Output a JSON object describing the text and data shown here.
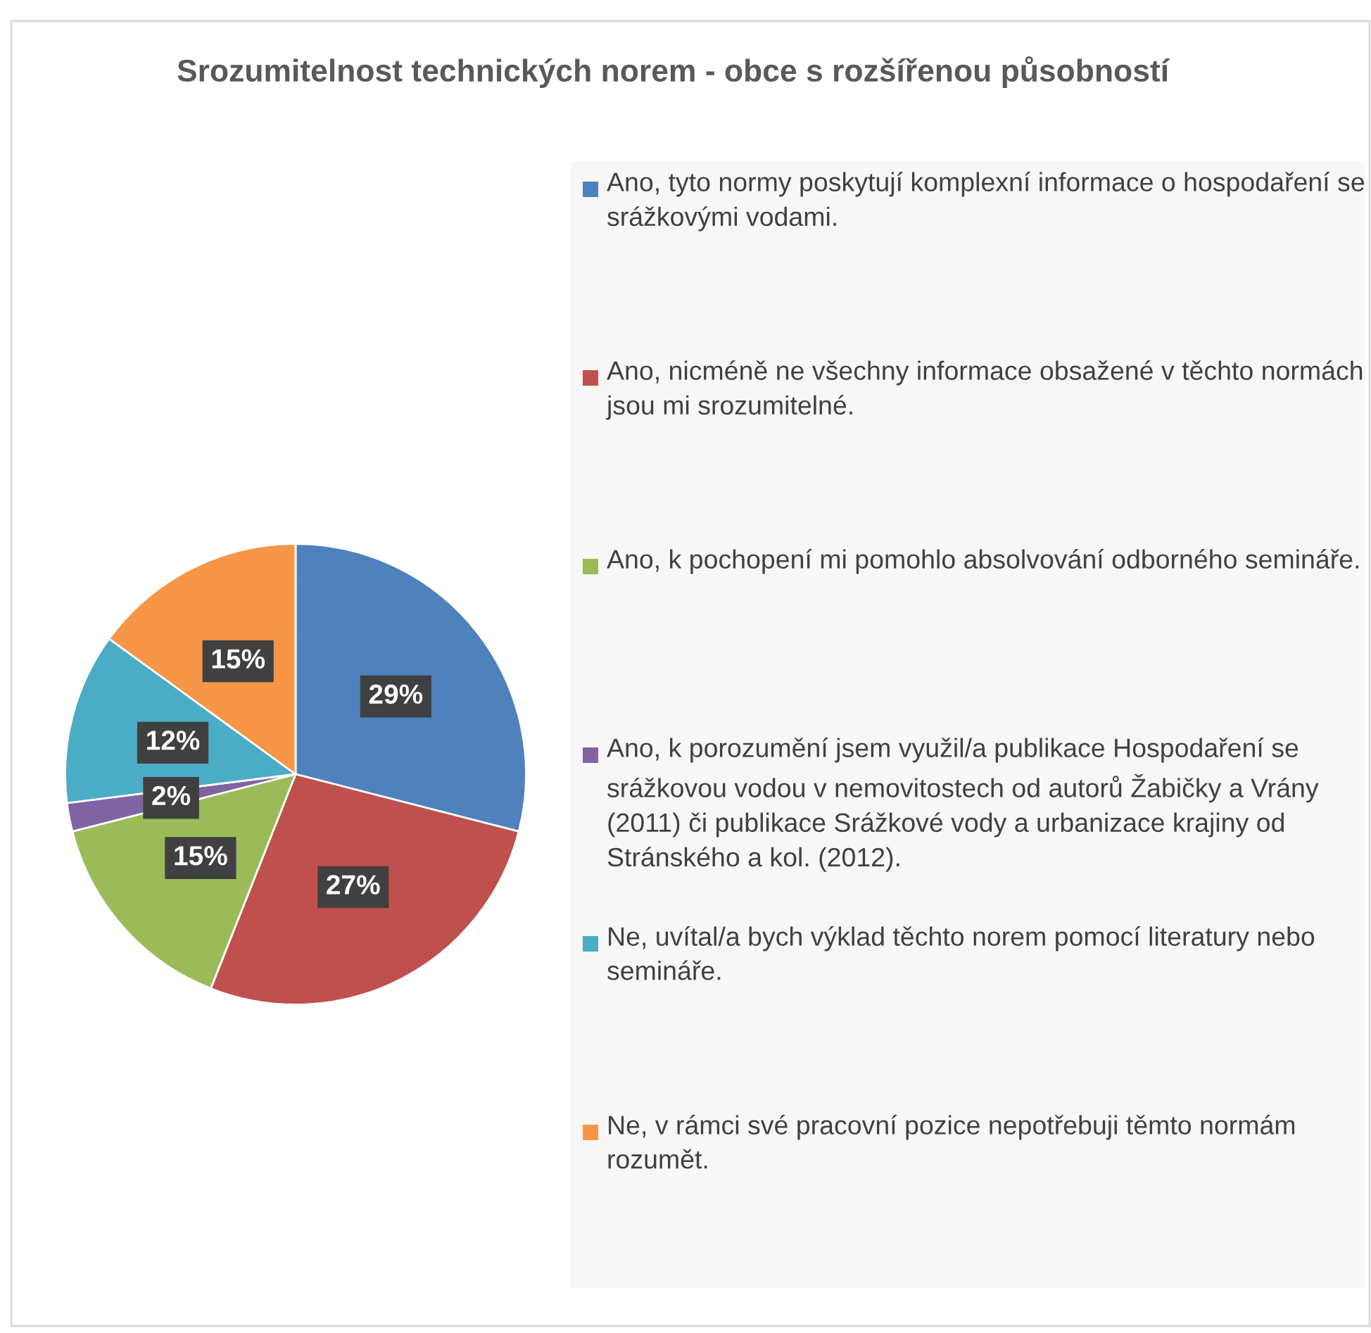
{
  "chart_data": {
    "type": "pie",
    "title": "Srozumitelnost technických norem - obce s rozšířenou působností",
    "categories": [
      "Ano, tyto normy poskytují komplexní informace o hospodaření se srážkovými vodami.",
      "Ano, nicméně ne všechny informace obsažené v těchto normách jsou mi srozumitelné.",
      "Ano, k pochopení mi pomohlo absolvování odborného semináře.",
      "Ano, k porozumění jsem využil/a publikace Hospodaření se srážkovou vodou v nemovitostech od autorů Žabičky a Vrány (2011) či publikace Srážkové vody a urbanizace krajiny od Stránského a kol. (2012).",
      "Ne, uvítal/a bych výklad těchto norem pomocí literatury nebo semináře.",
      "Ne, v rámci své pracovní pozice nepotřebuji těmto normám rozumět."
    ],
    "values": [
      29,
      27,
      15,
      2,
      12,
      15
    ],
    "colors": [
      "#4f81bd",
      "#c0504d",
      "#9bbb59",
      "#8064a2",
      "#4bacc6",
      "#f79646"
    ],
    "value_labels": [
      "29%",
      "27%",
      "15%",
      "2%",
      "12%",
      "15%"
    ],
    "legend": "right"
  }
}
